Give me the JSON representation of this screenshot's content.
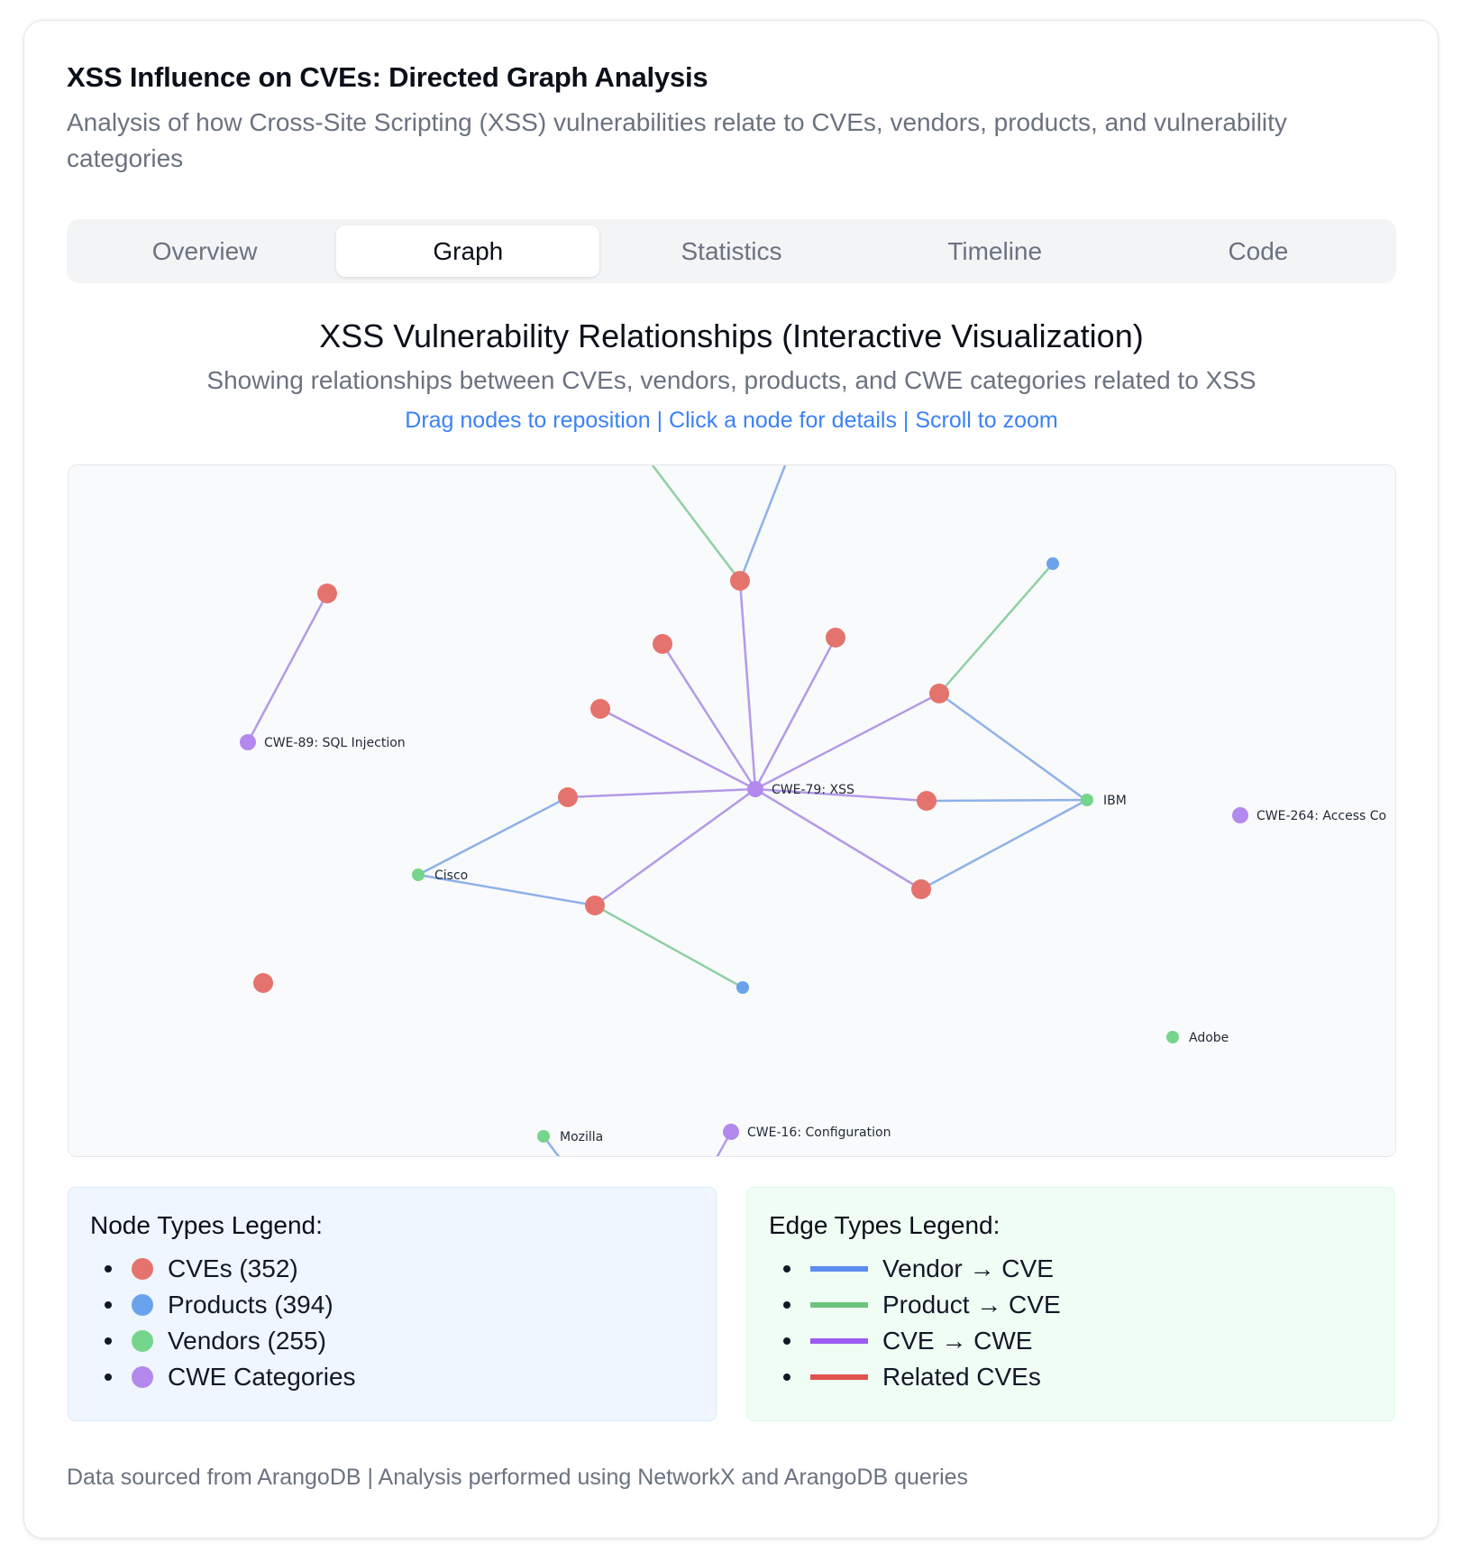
{
  "header": {
    "title": "XSS Influence on CVEs: Directed Graph Analysis",
    "subtitle": "Analysis of how Cross-Site Scripting (XSS) vulnerabilities relate to CVEs, vendors, products, and vulnerability categories"
  },
  "tabs": [
    {
      "label": "Overview",
      "active": false
    },
    {
      "label": "Graph",
      "active": true
    },
    {
      "label": "Statistics",
      "active": false
    },
    {
      "label": "Timeline",
      "active": false
    },
    {
      "label": "Code",
      "active": false
    }
  ],
  "graph": {
    "title": "XSS Vulnerability Relationships (Interactive Visualization)",
    "subtitle": "Showing relationships between CVEs, vendors, products, and CWE categories related to XSS",
    "hint": "Drag nodes to reposition | Click a node for details | Scroll to zoom",
    "colors": {
      "cve": "#e5736d",
      "product": "#6aa3ec",
      "vendor": "#75d58c",
      "cwe": "#b389ee",
      "edge_vendor": "#8fb1ea",
      "edge_product": "#8fd0a5",
      "edge_cwe": "#b39ae8"
    },
    "labels": {
      "cwe79": "CWE-79: XSS",
      "cwe89": "CWE-89: SQL Injection",
      "cwe264": "CWE-264: Access Co",
      "cwe16": "CWE-16: Configuration",
      "ibm": "IBM",
      "cisco": "Cisco",
      "adobe": "Adobe",
      "mozilla": "Mozilla"
    }
  },
  "legend": {
    "nodes": {
      "title": "Node Types Legend:",
      "items": [
        {
          "label": "CVEs (352)",
          "color": "#e5736d"
        },
        {
          "label": "Products (394)",
          "color": "#6aa3ec"
        },
        {
          "label": "Vendors (255)",
          "color": "#75d58c"
        },
        {
          "label": "CWE Categories",
          "color": "#b389ee"
        }
      ]
    },
    "edges": {
      "title": "Edge Types Legend:",
      "items": [
        {
          "label": "Vendor → CVE",
          "color": "#5b8def"
        },
        {
          "label": "Product → CVE",
          "color": "#6cc47e"
        },
        {
          "label": "CVE → CWE",
          "color": "#9b5cf0"
        },
        {
          "label": "Related CVEs",
          "color": "#e0524e"
        }
      ]
    }
  },
  "footer": {
    "text": "Data sourced from ArangoDB | Analysis performed using NetworkX and ArangoDB queries"
  }
}
